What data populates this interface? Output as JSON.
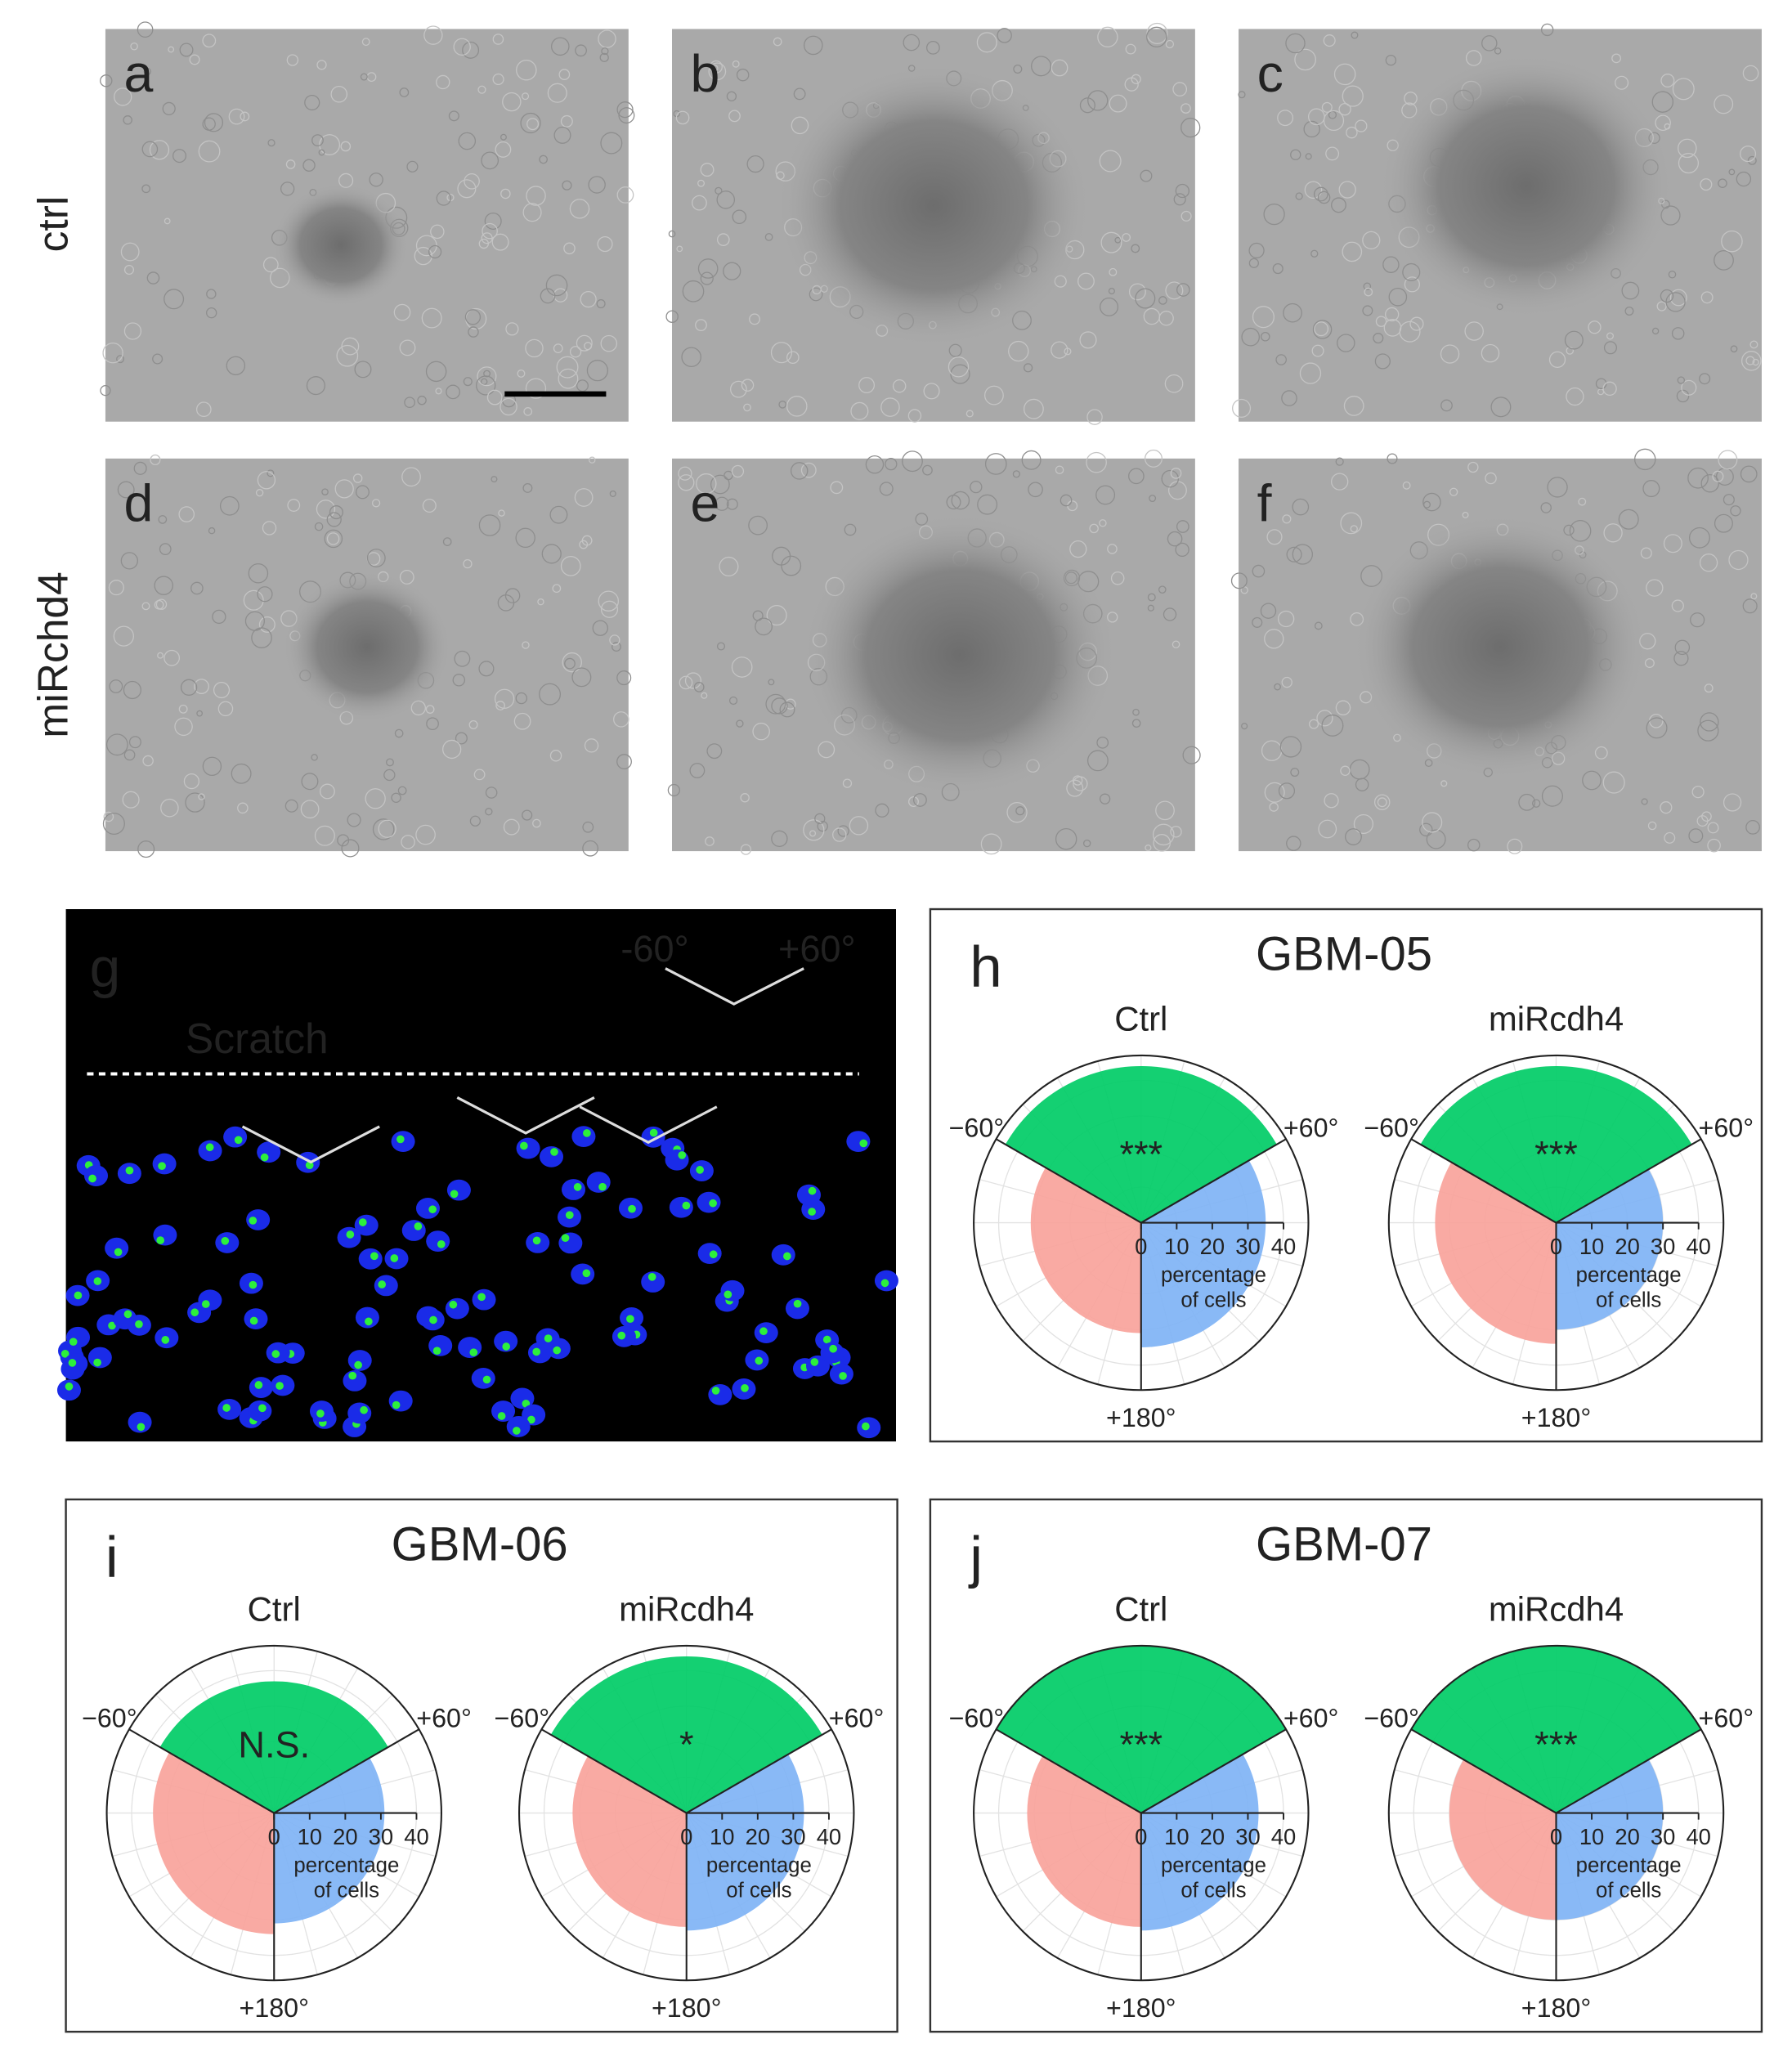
{
  "row_labels": [
    "ctrl",
    "miRchd4"
  ],
  "panel_labels": [
    "a",
    "b",
    "c",
    "d",
    "e",
    "f",
    "g",
    "h",
    "i",
    "j"
  ],
  "panel_g": {
    "scratch": "Scratch",
    "angle_labels": [
      "-60°",
      "+60°"
    ]
  },
  "chart_groups": [
    {
      "title": "GBM-05"
    },
    {
      "title": "GBM-06"
    },
    {
      "title": "GBM-07"
    }
  ],
  "chart_data": [
    {
      "type": "polar",
      "title": "Ctrl",
      "annotation": "***",
      "values": [
        44,
        35,
        31
      ],
      "colors": [
        "#00cc66",
        "#7fb3f5",
        "#f9a39b"
      ],
      "rlim": [
        0,
        47
      ],
      "rticks": [
        0,
        10,
        20,
        30,
        40
      ],
      "r_label": [
        "percentage",
        "of cells"
      ],
      "angle_labels": [
        "−60°",
        "+60°",
        "+180°"
      ],
      "grid": true
    },
    {
      "type": "polar",
      "title": "miRcdh4",
      "annotation": "***",
      "values": [
        44,
        30,
        34
      ],
      "colors": [
        "#00cc66",
        "#7fb3f5",
        "#f9a39b"
      ],
      "rlim": [
        0,
        47
      ],
      "rticks": [
        0,
        10,
        20,
        30,
        40
      ],
      "r_label": [
        "percentage",
        "of cells"
      ],
      "angle_labels": [
        "−60°",
        "+60°",
        "+180°"
      ],
      "grid": true
    },
    {
      "type": "polar",
      "title": "Ctrl",
      "annotation": "N.S.",
      "values": [
        37,
        31,
        34
      ],
      "colors": [
        "#00cc66",
        "#7fb3f5",
        "#f9a39b"
      ],
      "rlim": [
        0,
        47
      ],
      "rticks": [
        0,
        10,
        20,
        30,
        40
      ],
      "r_label": [
        "percentage",
        "of cells"
      ],
      "angle_labels": [
        "−60°",
        "+60°",
        "+180°"
      ],
      "grid": true
    },
    {
      "type": "polar",
      "title": "miRcdh4",
      "annotation": "*",
      "values": [
        44,
        33,
        32
      ],
      "colors": [
        "#00cc66",
        "#7fb3f5",
        "#f9a39b"
      ],
      "rlim": [
        0,
        47
      ],
      "rticks": [
        0,
        10,
        20,
        30,
        40
      ],
      "r_label": [
        "percentage",
        "of cells"
      ],
      "angle_labels": [
        "−60°",
        "+60°",
        "+180°"
      ],
      "grid": true
    },
    {
      "type": "polar",
      "title": "Ctrl",
      "annotation": "***",
      "values": [
        47,
        33,
        32
      ],
      "colors": [
        "#00cc66",
        "#7fb3f5",
        "#f9a39b"
      ],
      "rlim": [
        0,
        47
      ],
      "rticks": [
        0,
        10,
        20,
        30,
        40
      ],
      "r_label": [
        "percentage",
        "of cells"
      ],
      "angle_labels": [
        "−60°",
        "+60°",
        "+180°"
      ],
      "grid": true
    },
    {
      "type": "polar",
      "title": "miRcdh4",
      "annotation": "***",
      "values": [
        47,
        30,
        30
      ],
      "colors": [
        "#00cc66",
        "#7fb3f5",
        "#f9a39b"
      ],
      "rlim": [
        0,
        47
      ],
      "rticks": [
        0,
        10,
        20,
        30,
        40
      ],
      "r_label": [
        "percentage",
        "of cells"
      ],
      "angle_labels": [
        "−60°",
        "+60°",
        "+180°"
      ],
      "grid": true
    }
  ]
}
